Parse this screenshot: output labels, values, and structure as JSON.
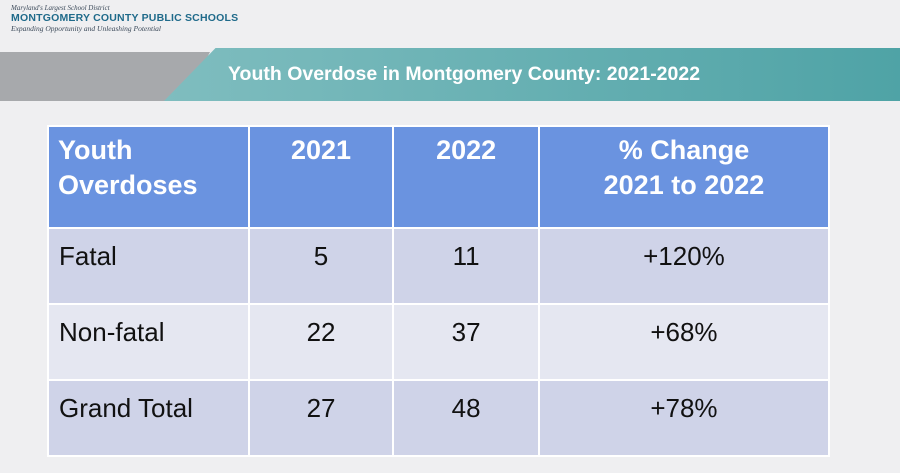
{
  "logo": {
    "tagline": "Maryland's Largest School District",
    "name": "MONTGOMERY COUNTY PUBLIC SCHOOLS",
    "slogan": "Expanding Opportunity and Unleashing Potential"
  },
  "banner": {
    "title": "Youth Overdose in Montgomery County: 2021-2022",
    "colors": {
      "teal": "#4fa3a6",
      "grey": "#a7a9ac"
    }
  },
  "table": {
    "header": {
      "col0_line1": "Youth",
      "col0_line2": "Overdoses",
      "col1": "2021",
      "col2": "2022",
      "col3_line1": "% Change",
      "col3_line2": "2021 to 2022"
    },
    "rows": [
      {
        "label": "Fatal",
        "y2021": "5",
        "y2022": "11",
        "change": "+120%"
      },
      {
        "label": "Non-fatal",
        "y2021": "22",
        "y2022": "37",
        "change": "+68%"
      },
      {
        "label": "Grand Total",
        "y2021": "27",
        "y2022": "48",
        "change": "+78%"
      }
    ],
    "colors": {
      "header": "#6a93e0",
      "row_dark": "#cfd3e8",
      "row_light": "#e5e7f1"
    }
  }
}
